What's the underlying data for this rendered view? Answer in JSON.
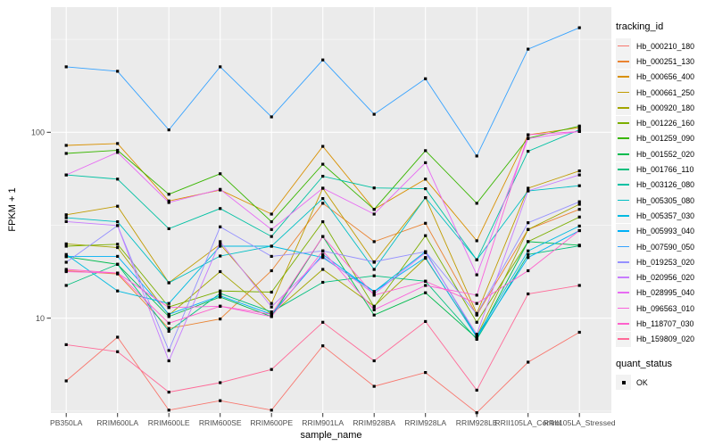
{
  "chart_data": {
    "type": "line",
    "title": "",
    "xlabel": "sample_name",
    "ylabel": "FPKM + 1",
    "y_scale": "log10",
    "y_axis_ticks": [
      100,
      10
    ],
    "y_minor_gridlines": [
      316.2,
      31.62,
      3.162
    ],
    "ylim_px_note": "log axis, decade = 208.4px",
    "panel_bg": "#EBEBEB",
    "grid_color": "#FFFFFF",
    "tick_label_color": "#4D4D4D",
    "point_marker": {
      "shape": "square",
      "color": "#000000",
      "size": 3.2
    },
    "legend": {
      "color_title": "tracking_id",
      "shape_title": "quant_status",
      "shape_entries": [
        {
          "label": "OK"
        }
      ]
    },
    "x_categories": [
      "PB350LA",
      "RRIM600LA",
      "RRIM600LE",
      "RRIM600SE",
      "RRIM600PE",
      "RRIM901LA",
      "RRIM928BA",
      "RRIM928LA",
      "RRIM928LE",
      "RRII105LA_Control",
      "RRII105LA_Stressed"
    ],
    "series": [
      {
        "name": "Hb_000210_180",
        "color": "#F8766D",
        "values": [
          4.6,
          7.9,
          3.2,
          3.6,
          3.2,
          7.1,
          4.3,
          5.1,
          3.1,
          5.8,
          8.4
        ]
      },
      {
        "name": "Hb_000251_130",
        "color": "#EA8331",
        "values": [
          18.0,
          17.3,
          8.8,
          9.9,
          18.0,
          41.5,
          25.8,
          32.4,
          10.4,
          30.0,
          38.5
        ]
      },
      {
        "name": "Hb_000656_400",
        "color": "#D89000",
        "values": [
          85.0,
          87.0,
          42.7,
          48.9,
          36.3,
          84.0,
          38.5,
          56.0,
          26.1,
          97.0,
          106.0
        ]
      },
      {
        "name": "Hb_000661_250",
        "color": "#C09B00",
        "values": [
          36.0,
          40.0,
          15.5,
          25.0,
          12.0,
          50.0,
          20.0,
          44.5,
          10.6,
          50.0,
          62.0
        ]
      },
      {
        "name": "Hb_000920_180",
        "color": "#A3A500",
        "values": [
          25.1,
          24.0,
          10.4,
          17.8,
          10.5,
          18.3,
          11.6,
          21.0,
          8.0,
          30.0,
          41.0
        ]
      },
      {
        "name": "Hb_001226_160",
        "color": "#7CAE00",
        "values": [
          24.4,
          25.0,
          11.5,
          14.0,
          13.8,
          33.0,
          11.5,
          27.8,
          9.5,
          25.8,
          35.0
        ]
      },
      {
        "name": "Hb_001259_090",
        "color": "#39B600",
        "values": [
          77.0,
          80.0,
          46.4,
          59.8,
          33.0,
          67.3,
          38.5,
          79.6,
          41.5,
          93.0,
          108.0
        ]
      },
      {
        "name": "Hb_001552_020",
        "color": "#00BB4E",
        "values": [
          21.4,
          19.5,
          10.2,
          13.0,
          10.2,
          27.5,
          10.4,
          13.7,
          7.8,
          25.8,
          24.7
        ]
      },
      {
        "name": "Hb_001766_110",
        "color": "#00BF7D",
        "values": [
          15.0,
          19.5,
          8.5,
          13.6,
          10.8,
          15.6,
          16.9,
          15.8,
          7.7,
          22.0,
          24.5
        ]
      },
      {
        "name": "Hb_003126_080",
        "color": "#00C1A3",
        "values": [
          59.0,
          56.0,
          30.3,
          38.9,
          27.5,
          58.0,
          50.2,
          49.7,
          20.6,
          79.0,
          103.0
        ]
      },
      {
        "name": "Hb_005305_080",
        "color": "#00BFC4",
        "values": [
          34.7,
          33.0,
          15.5,
          21.6,
          24.4,
          44.0,
          18.3,
          44.5,
          20.6,
          48.4,
          51.6
        ]
      },
      {
        "name": "Hb_005357_030",
        "color": "#00BAE0",
        "values": [
          22.0,
          14.0,
          12.0,
          24.4,
          24.4,
          21.2,
          13.9,
          22.8,
          8.0,
          23.0,
          31.3
        ]
      },
      {
        "name": "Hb_005993_040",
        "color": "#00B0F6",
        "values": [
          21.5,
          21.5,
          10.5,
          13.2,
          10.5,
          22.0,
          13.9,
          21.2,
          7.9,
          21.2,
          29.6
        ]
      },
      {
        "name": "Hb_007590_050",
        "color": "#35A2FF",
        "values": [
          225,
          213,
          103,
          225,
          121,
          245,
          125,
          194,
          74.5,
          280,
          365
        ]
      },
      {
        "name": "Hb_019253_020",
        "color": "#9590FF",
        "values": [
          20.0,
          31.5,
          6.7,
          31.0,
          21.5,
          23.0,
          20.1,
          22.8,
          10.5,
          32.6,
          42.3
        ]
      },
      {
        "name": "Hb_020956_020",
        "color": "#C77CFF",
        "values": [
          33.1,
          31.5,
          5.9,
          25.8,
          11.5,
          21.5,
          13.5,
          22.5,
          8.2,
          48.4,
          59.0
        ]
      },
      {
        "name": "Hb_028995_040",
        "color": "#E76BF3",
        "values": [
          59.0,
          78.0,
          41.9,
          49.3,
          30.0,
          50.0,
          36.3,
          68.6,
          17.1,
          92.6,
          101.0
        ]
      },
      {
        "name": "Hb_096563_010",
        "color": "#FA62DB",
        "values": [
          17.8,
          17.5,
          11.4,
          11.6,
          10.2,
          23.0,
          11.1,
          15.0,
          13.3,
          97.0,
          101.0
        ]
      },
      {
        "name": "Hb_118707_030",
        "color": "#FF61CC",
        "values": [
          18.3,
          17.5,
          9.4,
          11.6,
          10.5,
          27.5,
          13.3,
          15.8,
          12.0,
          18.0,
          29.6
        ]
      },
      {
        "name": "Hb_159809_020",
        "color": "#FF6A98",
        "values": [
          7.2,
          6.6,
          4.0,
          4.5,
          5.3,
          9.5,
          5.9,
          9.6,
          4.1,
          13.5,
          15.0
        ]
      }
    ]
  }
}
